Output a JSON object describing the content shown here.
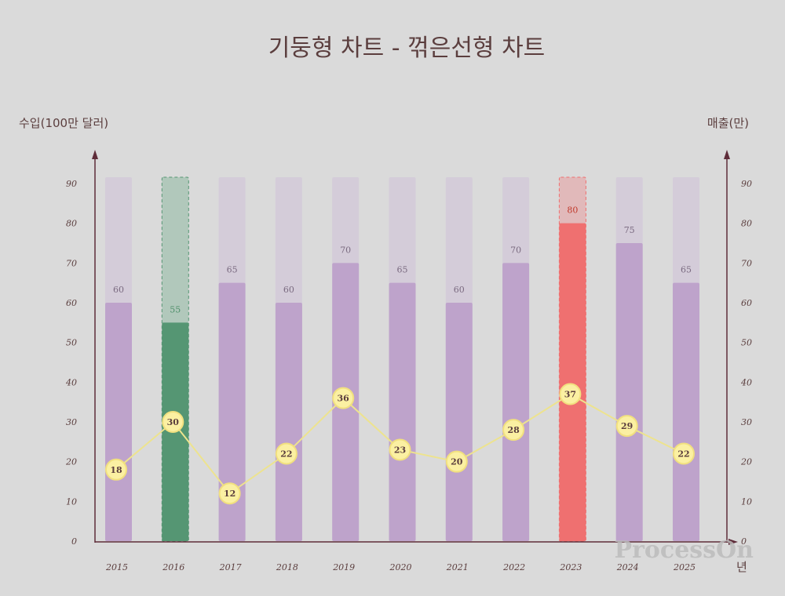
{
  "colors": {
    "background": "#dadada",
    "bar": "#bea3cb",
    "bar_track": "#d4ccd9",
    "highlight_green": "#559673",
    "highlight_green_track": "#b1c8bb",
    "highlight_red": "#ef7070",
    "highlight_red_track": "#e1b9ba",
    "axis": "#5e2c39",
    "line": "#ede38e",
    "point_fill": "#fbf0a2",
    "point_stroke": "#f1e07f",
    "text": "#5b3e3e"
  },
  "watermark": "ProcessOn",
  "chart_data": {
    "type": "bar",
    "title": "기둥형 차트 - 꺾은선형 차트",
    "xlabel": "년",
    "ylabel": "수입(100만 달러)",
    "y2label": "매출(만)",
    "ylim": [
      0,
      90
    ],
    "y2lim": [
      0,
      90
    ],
    "yticks": [
      0,
      10,
      20,
      30,
      40,
      50,
      60,
      70,
      80,
      90
    ],
    "y2ticks": [
      0,
      10,
      20,
      30,
      40,
      50,
      60,
      70,
      80,
      90
    ],
    "grid": false,
    "categories": [
      "2015",
      "2016",
      "2017",
      "2018",
      "2019",
      "2020",
      "2021",
      "2022",
      "2023",
      "2024",
      "2025"
    ],
    "series": [
      {
        "type": "bar",
        "axis": "left",
        "values": [
          60,
          55,
          65,
          60,
          70,
          65,
          60,
          70,
          80,
          75,
          65
        ],
        "highlight": {
          "2016": "green",
          "2023": "red"
        }
      },
      {
        "type": "line",
        "axis": "right",
        "values": [
          18,
          30,
          12,
          22,
          36,
          23,
          20,
          28,
          37,
          29,
          22
        ]
      }
    ]
  }
}
